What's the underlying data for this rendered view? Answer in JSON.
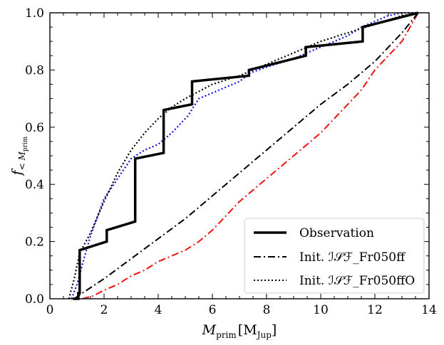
{
  "chart_data": {
    "type": "line",
    "title": "",
    "xlabel": "M_prim [M_Jup]",
    "ylabel": "f_{<M_prim}",
    "xlabel_parts": {
      "symbol": "M",
      "sub": "prim",
      "unit_open": "[M",
      "unit_sub": "Jup",
      "unit_close": "]"
    },
    "ylabel_parts": {
      "symbol": "f",
      "sub_lt": "< M",
      "sub_prim": "prim"
    },
    "xlim": [
      0,
      14
    ],
    "ylim": [
      0.0,
      1.0
    ],
    "xticks": [
      "0",
      "2",
      "4",
      "6",
      "8",
      "10",
      "12",
      "14"
    ],
    "yticks": [
      "0.0",
      "0.2",
      "0.4",
      "0.6",
      "0.8",
      "1.0"
    ],
    "legend_position": "lower-right",
    "legend": [
      {
        "label": "Observation",
        "style": "solid"
      },
      {
        "label": "Init. ℐ𝒮ℱ_Fr050ff",
        "style": "dashdot"
      },
      {
        "label": "Init. ℐ𝒮ℱ_Fr050ffO",
        "style": "dotted"
      }
    ],
    "series": [
      {
        "name": "Observation",
        "color": "#000000",
        "style": "solid-step",
        "x": [
          0.85,
          1.05,
          1.05,
          1.1,
          1.1,
          2.1,
          2.1,
          3.15,
          3.15,
          4.2,
          4.2,
          5.25,
          5.25,
          7.35,
          7.35,
          9.45,
          9.45,
          11.55,
          11.55,
          13.6
        ],
        "y": [
          0.0,
          0.0,
          0.02,
          0.02,
          0.17,
          0.2,
          0.24,
          0.27,
          0.49,
          0.51,
          0.66,
          0.68,
          0.76,
          0.78,
          0.8,
          0.85,
          0.88,
          0.9,
          0.95,
          1.0
        ]
      },
      {
        "name": "Init. ℐ𝒮ℱ_Fr050ff",
        "color": "#000000",
        "style": "dashdot",
        "x": [
          0.9,
          1.2,
          2.0,
          3.0,
          4.0,
          5.0,
          6.0,
          7.0,
          8.0,
          9.0,
          10.0,
          11.0,
          12.0,
          13.0,
          13.6
        ],
        "y": [
          0.0,
          0.02,
          0.07,
          0.14,
          0.21,
          0.28,
          0.36,
          0.44,
          0.52,
          0.6,
          0.68,
          0.75,
          0.83,
          0.93,
          1.0
        ]
      },
      {
        "name": "Init. ℐ𝒮ℱ_Fr050ffO",
        "color": "#000000",
        "style": "dotted",
        "x": [
          0.7,
          0.9,
          1.1,
          1.5,
          2.0,
          2.5,
          3.0,
          3.5,
          4.0,
          4.5,
          5.0,
          6.0,
          7.0,
          8.0,
          9.0,
          10.0,
          11.0,
          12.0,
          13.0,
          13.6
        ],
        "y": [
          0.0,
          0.07,
          0.16,
          0.23,
          0.34,
          0.44,
          0.52,
          0.58,
          0.63,
          0.67,
          0.7,
          0.75,
          0.78,
          0.82,
          0.86,
          0.9,
          0.93,
          0.96,
          0.99,
          1.0
        ]
      },
      {
        "name": "Blue dotted",
        "color": "#1010e0",
        "style": "dotted",
        "x": [
          0.8,
          1.0,
          1.2,
          1.5,
          2.0,
          2.5,
          3.0,
          3.5,
          4.0,
          4.5,
          4.9,
          5.1,
          5.5,
          6.0,
          6.5,
          7.0,
          7.4,
          8.0,
          9.0,
          10.0,
          11.0,
          11.5,
          12.0,
          12.5,
          13.0,
          13.6
        ],
        "y": [
          0.0,
          0.05,
          0.12,
          0.22,
          0.35,
          0.42,
          0.49,
          0.52,
          0.54,
          0.58,
          0.62,
          0.64,
          0.7,
          0.72,
          0.74,
          0.76,
          0.79,
          0.81,
          0.84,
          0.88,
          0.92,
          0.95,
          0.97,
          0.99,
          1.0,
          1.0
        ]
      },
      {
        "name": "Red dash-dot",
        "color": "#ee1111",
        "style": "dashdot",
        "x": [
          1.2,
          1.6,
          2.0,
          2.5,
          3.0,
          3.5,
          4.0,
          4.5,
          5.0,
          5.5,
          6.0,
          6.5,
          7.0,
          7.5,
          8.0,
          8.5,
          9.0,
          9.5,
          10.0,
          10.5,
          11.0,
          11.5,
          12.0,
          12.5,
          13.0,
          13.3,
          13.6
        ],
        "y": [
          0.0,
          0.01,
          0.03,
          0.05,
          0.08,
          0.1,
          0.13,
          0.15,
          0.17,
          0.2,
          0.24,
          0.29,
          0.34,
          0.38,
          0.42,
          0.46,
          0.5,
          0.54,
          0.58,
          0.63,
          0.68,
          0.73,
          0.8,
          0.85,
          0.9,
          0.95,
          1.0
        ]
      }
    ]
  }
}
